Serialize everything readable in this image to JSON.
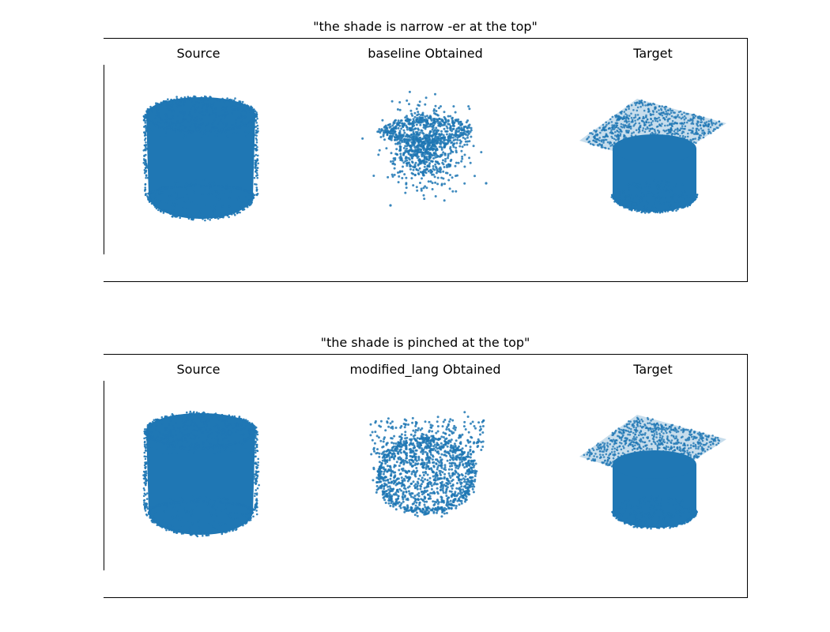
{
  "figure": {
    "point_color": "#1f77b4",
    "panels": [
      {
        "title": "\"the shade is narrow -er at the top\"",
        "subplots": [
          {
            "title": "Source",
            "shape": "cylinder"
          },
          {
            "title": "baseline Obtained",
            "shape": "sparse-blob"
          },
          {
            "title": "Target",
            "shape": "lamp-shade"
          }
        ]
      },
      {
        "title": "\"the shade is pinched at the top\"",
        "subplots": [
          {
            "title": "Source",
            "shape": "cylinder"
          },
          {
            "title": "modified_lang Obtained",
            "shape": "pinched-blob"
          },
          {
            "title": "Target",
            "shape": "lamp-shade"
          }
        ]
      }
    ]
  }
}
